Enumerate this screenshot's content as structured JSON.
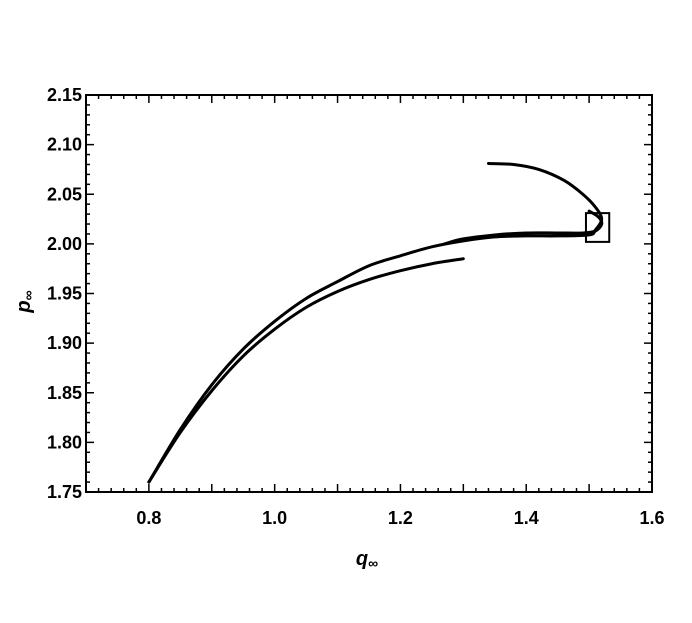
{
  "chart_data": {
    "type": "line",
    "title": "",
    "xlabel": {
      "symbol": "q",
      "subscript": "∞"
    },
    "ylabel": {
      "symbol": "p",
      "subscript": "∞"
    },
    "xlim": [
      0.7,
      1.6
    ],
    "ylim": [
      1.75,
      2.15
    ],
    "xticks": [
      "0.8",
      "1.0",
      "1.2",
      "1.4",
      "1.6"
    ],
    "yticks": [
      "1.75",
      "1.80",
      "1.85",
      "1.90",
      "1.95",
      "2.00",
      "2.05",
      "2.10",
      "2.15"
    ],
    "grid": false,
    "legend": "none",
    "line_color": "#000000",
    "series": [
      {
        "x": [
          0.8,
          0.85,
          0.9,
          0.95,
          1.0,
          1.05,
          1.1,
          1.15,
          1.2,
          1.25,
          1.3
        ],
        "y": [
          1.76,
          1.81,
          1.852,
          1.887,
          1.914,
          1.936,
          1.952,
          1.964,
          1.973,
          1.98,
          1.985
        ]
      },
      {
        "x": [
          0.8,
          0.85,
          0.9,
          0.95,
          1.0,
          1.05,
          1.1,
          1.15,
          1.2,
          1.25,
          1.3,
          1.35,
          1.4,
          1.45,
          1.5,
          1.51,
          1.52,
          1.51,
          1.49,
          1.46,
          1.42,
          1.38,
          1.34
        ],
        "y": [
          1.76,
          1.813,
          1.858,
          1.894,
          1.922,
          1.945,
          1.962,
          1.978,
          1.988,
          1.997,
          2.003,
          2.007,
          2.008,
          2.008,
          2.009,
          2.014,
          2.025,
          2.037,
          2.05,
          2.064,
          2.075,
          2.08,
          2.081
        ]
      },
      {
        "x": [
          1.27,
          1.3,
          1.35,
          1.4,
          1.45,
          1.49,
          1.51,
          1.52,
          1.515,
          1.5
        ],
        "y": [
          2.0,
          2.005,
          2.009,
          2.011,
          2.011,
          2.011,
          2.013,
          2.02,
          2.027,
          2.033
        ]
      }
    ],
    "annotations": [
      {
        "type": "box",
        "x": [
          1.495,
          1.532
        ],
        "y": [
          2.002,
          2.031
        ]
      }
    ]
  }
}
